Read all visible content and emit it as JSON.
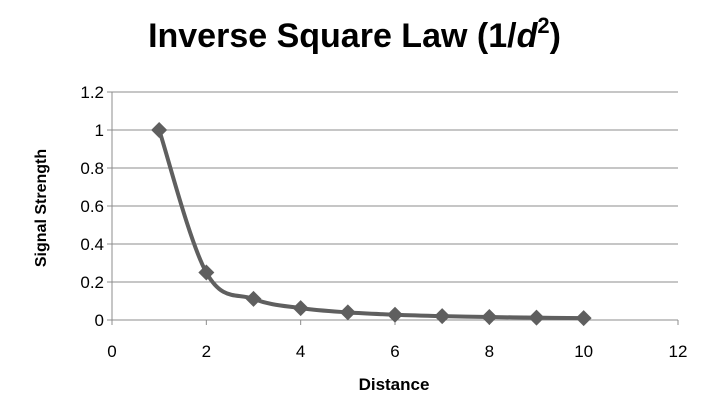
{
  "chart_data": {
    "type": "line",
    "title": {
      "prefix": "Inverse Square Law (1/",
      "variable": "d",
      "exponent": "2",
      "suffix": ")"
    },
    "xlabel": "Distance",
    "ylabel": "Signal Strength",
    "xlim": [
      0,
      12
    ],
    "ylim": [
      0,
      1.2
    ],
    "x_ticks": [
      0,
      2,
      4,
      6,
      8,
      10,
      12
    ],
    "y_ticks": [
      0,
      0.2,
      0.4,
      0.6,
      0.8,
      1,
      1.2
    ],
    "x_tick_labels": [
      "0",
      "2",
      "4",
      "6",
      "8",
      "10",
      "12"
    ],
    "y_tick_labels": [
      "0",
      "0.2",
      "0.4",
      "0.6",
      "0.8",
      "1",
      "1.2"
    ],
    "grid": "horizontal",
    "legend": "none",
    "marker": "diamond",
    "smooth": true,
    "series": [
      {
        "color": "#5f5f5f",
        "x": [
          1,
          2,
          3,
          4,
          5,
          6,
          7,
          8,
          9,
          10
        ],
        "y": [
          1,
          0.25,
          0.111,
          0.0625,
          0.04,
          0.0278,
          0.0204,
          0.0156,
          0.0123,
          0.01
        ]
      }
    ]
  }
}
